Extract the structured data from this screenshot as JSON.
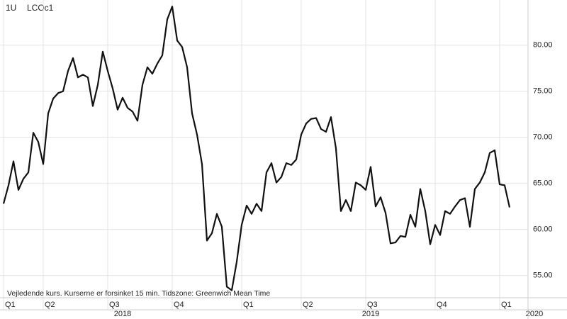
{
  "chart_data": {
    "type": "line",
    "interval_label": "1U",
    "title": "LCOc1",
    "annotation": "Vejledende kurs. Kurserne er forsinket 15 min.   Tidszone: Greenwich Mean Time",
    "categories": [
      "Q1",
      null,
      null,
      null,
      null,
      null,
      null,
      null,
      "Q2",
      null,
      null,
      null,
      null,
      null,
      null,
      null,
      null,
      null,
      null,
      null,
      null,
      "Q3",
      null,
      null,
      null,
      null,
      null,
      null,
      null,
      null,
      null,
      null,
      null,
      null,
      "Q4",
      null,
      null,
      null,
      null,
      null,
      null,
      null,
      null,
      null,
      null,
      null,
      null,
      null,
      "Q1",
      null,
      null,
      null,
      null,
      null,
      null,
      null,
      null,
      null,
      null,
      null,
      "Q2",
      null,
      null,
      null,
      null,
      null,
      null,
      null,
      null,
      null,
      null,
      null,
      null,
      "Q3",
      null,
      null,
      null,
      null,
      null,
      null,
      null,
      null,
      null,
      null,
      null,
      null,
      null,
      "Q4",
      null,
      null,
      null,
      null,
      null,
      null,
      null,
      null,
      null,
      null,
      null,
      null,
      "Q1",
      null,
      null,
      null,
      null,
      null,
      null,
      null
    ],
    "year_categories": [
      null,
      null,
      null,
      null,
      null,
      null,
      null,
      null,
      null,
      null,
      null,
      null,
      null,
      null,
      null,
      null,
      null,
      null,
      null,
      null,
      null,
      null,
      null,
      null,
      "2018",
      null,
      null,
      null,
      null,
      null,
      null,
      null,
      null,
      null,
      null,
      null,
      null,
      null,
      null,
      null,
      null,
      null,
      null,
      null,
      null,
      null,
      null,
      null,
      null,
      null,
      null,
      null,
      null,
      null,
      null,
      null,
      null,
      null,
      null,
      null,
      null,
      null,
      null,
      null,
      null,
      null,
      null,
      null,
      null,
      null,
      null,
      null,
      null,
      null,
      "2019",
      null,
      null,
      null,
      null,
      null,
      null,
      null,
      null,
      null,
      null,
      null,
      null,
      null,
      null,
      null,
      null,
      null,
      null,
      null,
      null,
      null,
      null,
      null,
      null,
      null,
      null,
      null,
      null,
      null,
      null,
      null,
      null,
      "2020"
    ],
    "series": [
      {
        "name": "LCOc1",
        "color": "#111111",
        "values": [
          62.8,
          64.8,
          67.4,
          64.3,
          65.5,
          66.2,
          70.5,
          69.5,
          67.1,
          72.6,
          74.2,
          74.8,
          75.0,
          77.2,
          78.6,
          76.5,
          76.8,
          76.5,
          73.4,
          75.7,
          79.3,
          77.2,
          75.3,
          73.0,
          74.3,
          73.2,
          72.8,
          71.8,
          75.7,
          77.6,
          76.9,
          78.0,
          78.9,
          82.8,
          84.2,
          80.5,
          79.8,
          77.6,
          72.6,
          70.3,
          67.1,
          58.8,
          59.6,
          61.7,
          60.3,
          53.8,
          53.4,
          56.5,
          60.5,
          62.6,
          61.7,
          62.8,
          62.0,
          66.2,
          67.2,
          65.1,
          65.7,
          67.2,
          67.0,
          67.6,
          70.3,
          71.5,
          72.0,
          72.1,
          70.9,
          70.6,
          72.2,
          68.8,
          62.0,
          63.2,
          62.0,
          65.1,
          64.8,
          64.3,
          66.8,
          62.5,
          63.5,
          61.8,
          58.5,
          58.6,
          59.3,
          59.2,
          61.6,
          60.3,
          64.4,
          62.0,
          58.4,
          60.5,
          59.4,
          62.0,
          61.7,
          62.5,
          63.2,
          63.4,
          60.3,
          64.4,
          65.1,
          66.2,
          68.3,
          68.6,
          64.9,
          64.8,
          62.4,
          null,
          null,
          null,
          null,
          null
        ]
      }
    ],
    "ylim": [
      52.6,
      84.9
    ],
    "yticks": [
      {
        "value": 55,
        "label": "55.00"
      },
      {
        "value": 60,
        "label": "60.00"
      },
      {
        "value": 65,
        "label": "65.00"
      },
      {
        "value": 70,
        "label": "70.00"
      },
      {
        "value": 75,
        "label": "75.00"
      },
      {
        "value": 80,
        "label": "80.00"
      }
    ],
    "grid": true
  }
}
